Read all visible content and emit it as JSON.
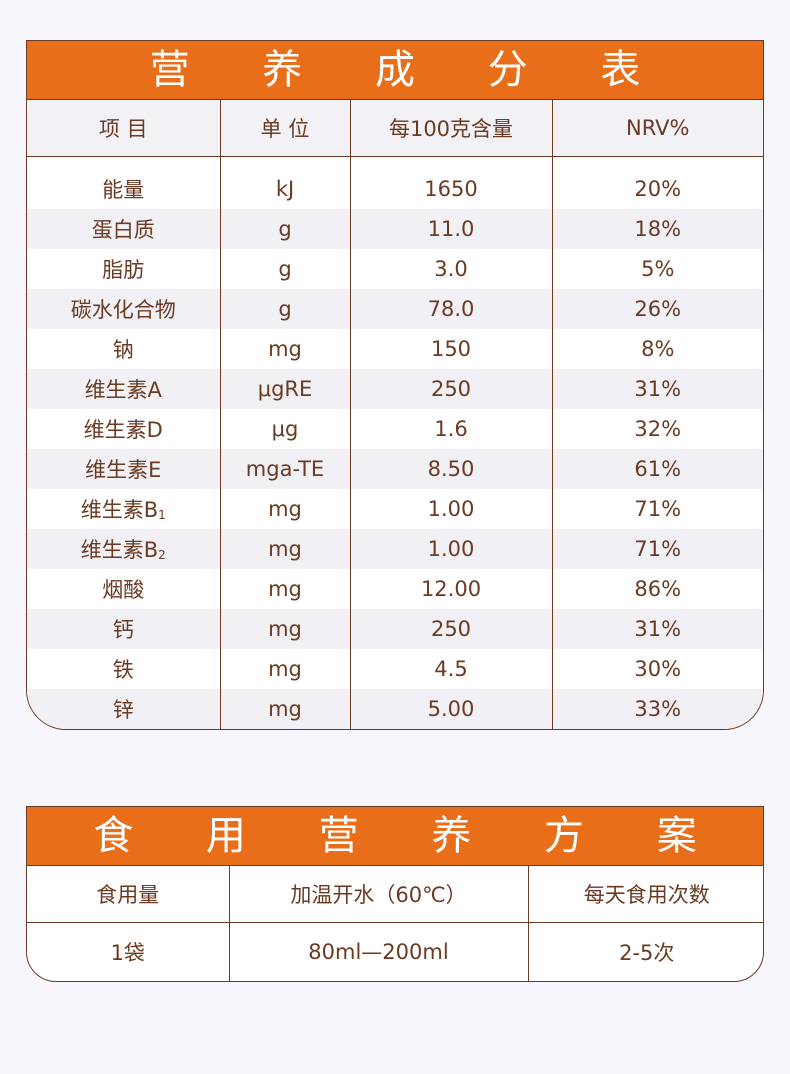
{
  "nutrition": {
    "title": "营 养 成 分 表",
    "headers": [
      "项 目",
      "单 位",
      "每100克含量",
      "NRV%"
    ],
    "rows": [
      {
        "item": "能量",
        "sub": "",
        "unit": "kJ",
        "amount": "1650",
        "nrv": "20%"
      },
      {
        "item": "蛋白质",
        "sub": "",
        "unit": "g",
        "amount": "11.0",
        "nrv": "18%"
      },
      {
        "item": "脂肪",
        "sub": "",
        "unit": "g",
        "amount": "3.0",
        "nrv": "5%"
      },
      {
        "item": "碳水化合物",
        "sub": "",
        "unit": "g",
        "amount": "78.0",
        "nrv": "26%"
      },
      {
        "item": "钠",
        "sub": "",
        "unit": "mg",
        "amount": "150",
        "nrv": "8%"
      },
      {
        "item": "维生素A",
        "sub": "",
        "unit": "μgRE",
        "amount": "250",
        "nrv": "31%"
      },
      {
        "item": "维生素D",
        "sub": "",
        "unit": "μg",
        "amount": "1.6",
        "nrv": "32%"
      },
      {
        "item": "维生素E",
        "sub": "",
        "unit": "mga-TE",
        "amount": "8.50",
        "nrv": "61%"
      },
      {
        "item": "维生素B",
        "sub": "1",
        "unit": "mg",
        "amount": "1.00",
        "nrv": "71%"
      },
      {
        "item": "维生素B",
        "sub": "2",
        "unit": "mg",
        "amount": "1.00",
        "nrv": "71%"
      },
      {
        "item": "烟酸",
        "sub": "",
        "unit": "mg",
        "amount": "12.00",
        "nrv": "86%"
      },
      {
        "item": "钙",
        "sub": "",
        "unit": "mg",
        "amount": "250",
        "nrv": "31%"
      },
      {
        "item": "铁",
        "sub": "",
        "unit": "mg",
        "amount": "4.5",
        "nrv": "30%"
      },
      {
        "item": "锌",
        "sub": "",
        "unit": "mg",
        "amount": "5.00",
        "nrv": "33%"
      }
    ]
  },
  "usage": {
    "title": "食 用 营 养 方 案",
    "headers": [
      "食用量",
      "加温开水（60℃）",
      "每天食用次数"
    ],
    "values": [
      "1袋",
      "80ml—200ml",
      "2-5次"
    ]
  },
  "colors": {
    "accent": "#e86e1a",
    "text": "#6b3a22",
    "stripe": "#f1f0f5"
  }
}
